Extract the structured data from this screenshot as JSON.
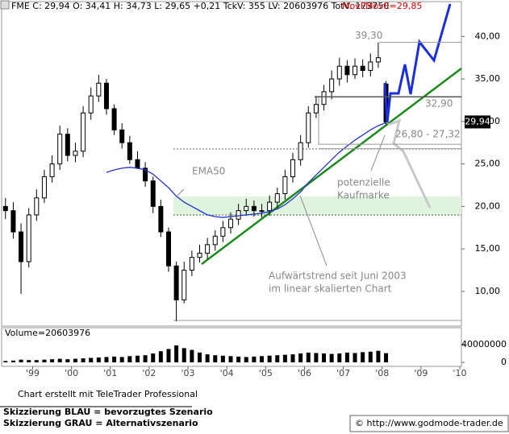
{
  "header": {
    "quote": "FME C: 29,94 O: 34,41 H: 34,73 L: 29,65 +0,21 TckV: 355 LV: 20603976 TotV: 173750",
    "indicator": "MovE",
    "indicator_value": "MovE=29,85"
  },
  "chart_data": {
    "type": "candlestick",
    "x": [
      1998.3,
      1998.5,
      1998.7,
      1998.9,
      1999.1,
      1999.3,
      1999.5,
      1999.7,
      1999.9,
      2000.1,
      2000.3,
      2000.5,
      2000.7,
      2000.9,
      2001.1,
      2001.3,
      2001.5,
      2001.7,
      2001.9,
      2002.1,
      2002.3,
      2002.5,
      2002.7,
      2002.9,
      2003.1,
      2003.3,
      2003.5,
      2003.7,
      2003.9,
      2004.1,
      2004.3,
      2004.5,
      2004.7,
      2004.9,
      2005.1,
      2005.3,
      2005.5,
      2005.7,
      2005.9,
      2006.1,
      2006.3,
      2006.5,
      2006.7,
      2006.9,
      2007.1,
      2007.3,
      2007.5,
      2007.7,
      2007.9,
      2008.1
    ],
    "open": [
      20,
      19.5,
      17,
      13.5,
      19,
      21,
      23.5,
      25,
      28.5,
      26,
      26.5,
      31,
      33,
      34.5,
      31.5,
      29,
      27.5,
      25.5,
      24.5,
      23,
      20,
      17,
      13,
      9,
      12.5,
      14,
      14.5,
      15.5,
      16.5,
      17.5,
      18.5,
      19.5,
      20,
      19.5,
      19.5,
      20.5,
      21.5,
      23.5,
      25.5,
      27.5,
      31,
      32,
      33.5,
      35,
      36.5,
      35.5,
      36.5,
      36,
      37,
      34.41
    ],
    "high": [
      21,
      20.5,
      18,
      19.8,
      22,
      24.3,
      26,
      29.5,
      29.2,
      27.5,
      31.8,
      34,
      35.5,
      35,
      32,
      29.8,
      28.3,
      26.5,
      25.2,
      23.5,
      20.8,
      17.5,
      13.5,
      13.5,
      14.8,
      15.5,
      16.3,
      17.2,
      18.3,
      19.3,
      20.3,
      20.9,
      20.7,
      20.3,
      21.3,
      22.2,
      24.3,
      26.3,
      28.4,
      31.8,
      33,
      34.3,
      36,
      37.5,
      37.2,
      37.4,
      37.3,
      38,
      39.3,
      34.73
    ],
    "low": [
      18.5,
      16.2,
      9.7,
      12.8,
      18.3,
      20.4,
      22.8,
      24.3,
      25.3,
      25.2,
      25.8,
      30.2,
      32.3,
      30.8,
      28.4,
      26.8,
      25,
      24.4,
      22.3,
      19.2,
      16.4,
      12.3,
      6.5,
      8.6,
      11.8,
      13.4,
      13.8,
      14.8,
      15.8,
      16.8,
      17.8,
      18.9,
      18.8,
      18.7,
      18.9,
      19.8,
      20.8,
      22.8,
      24.8,
      26.9,
      30.4,
      31.3,
      32.6,
      34.2,
      34.6,
      35,
      35.2,
      35.3,
      36.3,
      29.65
    ],
    "close": [
      19.5,
      17,
      13.5,
      19,
      21,
      23.5,
      25,
      28.5,
      26,
      26.5,
      31,
      33,
      34.5,
      31.5,
      29,
      27.5,
      25.5,
      24.5,
      23,
      20,
      17,
      13,
      9,
      12.5,
      14,
      14.5,
      15.5,
      16.5,
      17.5,
      18.5,
      19.5,
      20,
      19.5,
      19.5,
      20.5,
      21.5,
      23.5,
      25.5,
      27.5,
      31,
      32,
      33.5,
      35,
      36.5,
      35.5,
      36.5,
      36,
      37,
      37.5,
      29.94
    ],
    "last_label": "29,94",
    "series": [
      {
        "name": "EMA50",
        "color": "#2233cc",
        "values": [
          null,
          null,
          null,
          null,
          null,
          null,
          null,
          null,
          null,
          null,
          null,
          null,
          null,
          24.0,
          24.3,
          24.5,
          24.6,
          24.5,
          24.3,
          23.8,
          23.0,
          22.2,
          21.2,
          20.5,
          20.0,
          19.5,
          19.0,
          18.8,
          18.7,
          18.8,
          18.9,
          19.0,
          19.1,
          19.2,
          19.4,
          19.7,
          20.2,
          20.9,
          21.7,
          22.8,
          23.7,
          24.6,
          25.5,
          26.4,
          27.1,
          27.8,
          28.4,
          29.0,
          29.5,
          29.85
        ]
      }
    ],
    "xlim": [
      1998.2,
      2010
    ],
    "xticks": [
      {
        "value": 1999,
        "label": "'99"
      },
      {
        "value": 2000,
        "label": "'00"
      },
      {
        "value": 2001,
        "label": "'01"
      },
      {
        "value": 2002,
        "label": "'02"
      },
      {
        "value": 2003,
        "label": "'03"
      },
      {
        "value": 2004,
        "label": "'04"
      },
      {
        "value": 2005,
        "label": "'05"
      },
      {
        "value": 2006,
        "label": "'06"
      },
      {
        "value": 2007,
        "label": "'07"
      },
      {
        "value": 2008,
        "label": "'08"
      },
      {
        "value": 2009,
        "label": "'09"
      },
      {
        "value": 2010,
        "label": "'10"
      }
    ],
    "ylim": [
      6.2,
      44.1
    ],
    "yticks": [
      {
        "value": 10,
        "label": "10,00"
      },
      {
        "value": 15,
        "label": "15,00"
      },
      {
        "value": 20,
        "label": "20,00"
      },
      {
        "value": 25,
        "label": "25,00"
      },
      {
        "value": 30,
        "label": "30,00"
      },
      {
        "value": 35,
        "label": "35,00"
      },
      {
        "value": 40,
        "label": "40,00"
      }
    ],
    "levels": [
      {
        "value": 39.3,
        "label": "39,30"
      },
      {
        "value": 32.9,
        "label": "32,90"
      }
    ],
    "zone": {
      "low": 26.8,
      "high": 27.32,
      "label": "26,80 - 27,32"
    },
    "annotations": {
      "kaufmarke": [
        "potenzielle",
        "Kaufmarke"
      ],
      "trend": [
        "Aufwärtstrend seit Juni 2003",
        "im linear skalierten Chart"
      ]
    },
    "volume": {
      "label": "Volume=20603976",
      "ylim": [
        0,
        78000000
      ],
      "yticks": [
        0,
        40000000
      ],
      "values": [
        3000000,
        4000000,
        6000000,
        5000000,
        5000000,
        6000000,
        7000000,
        8000000,
        7000000,
        8000000,
        9000000,
        10000000,
        11000000,
        12000000,
        13000000,
        12000000,
        14000000,
        15000000,
        16000000,
        20000000,
        25000000,
        30000000,
        38000000,
        32000000,
        28000000,
        22000000,
        18000000,
        16000000,
        15000000,
        14000000,
        13000000,
        12000000,
        13000000,
        14000000,
        15000000,
        16000000,
        17000000,
        18000000,
        20000000,
        22000000,
        21000000,
        20000000,
        19000000,
        20000000,
        22000000,
        21000000,
        23000000,
        24000000,
        26000000,
        20603976
      ]
    }
  },
  "footer": {
    "credit": "Chart erstellt mit TeleTrader Professional",
    "blue": "Skizzierung BLAU = bevorzugtes Szenario",
    "gray": "Skizzierung GRAU = Alternativszenario",
    "source": "© http://www.godmode-trader.de"
  }
}
